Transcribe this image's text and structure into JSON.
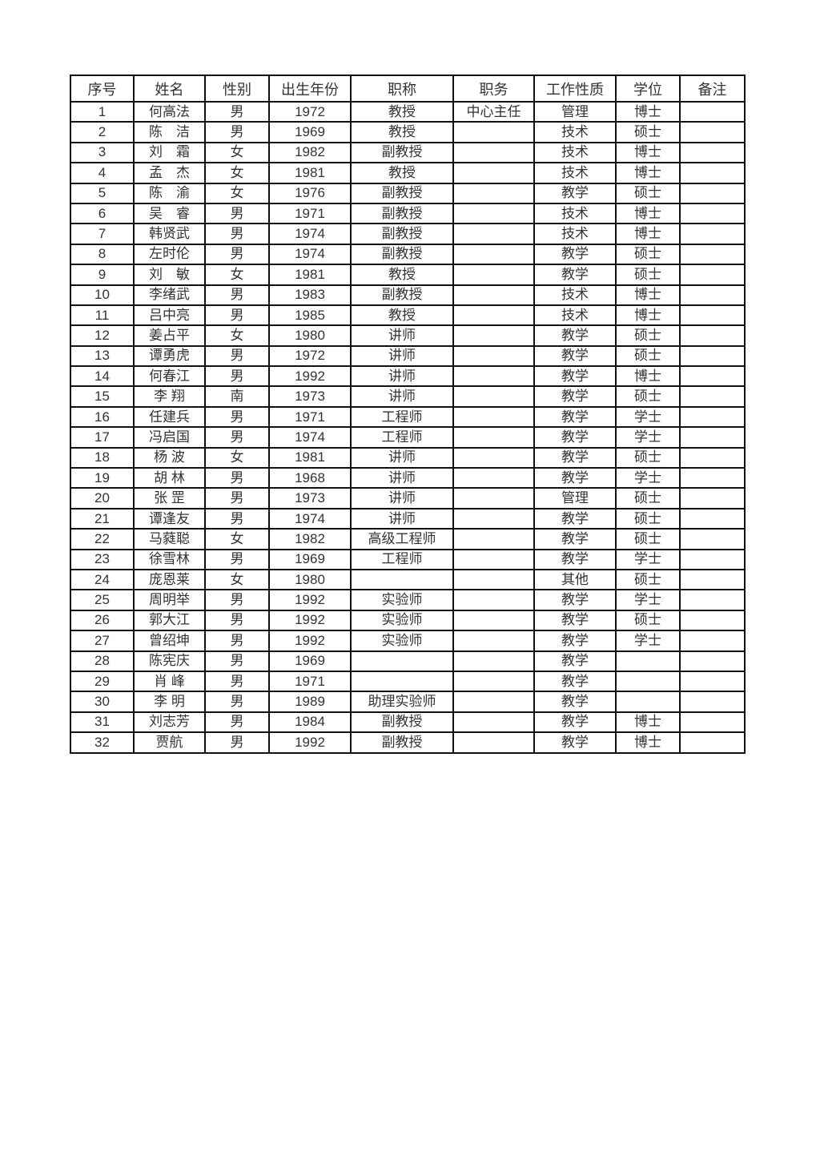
{
  "table": {
    "headers": [
      "序号",
      "姓名",
      "性别",
      "出生年份",
      "职称",
      "职务",
      "工作性质",
      "学位",
      "备注"
    ],
    "rows": [
      [
        "1",
        "何高法",
        "男",
        "1972",
        "教授",
        "中心主任",
        "管理",
        "博士",
        ""
      ],
      [
        "2",
        "陈　洁",
        "男",
        "1969",
        "教授",
        "",
        "技术",
        "硕士",
        ""
      ],
      [
        "3",
        "刘　霜",
        "女",
        "1982",
        "副教授",
        "",
        "技术",
        "博士",
        ""
      ],
      [
        "4",
        "孟　杰",
        "女",
        "1981",
        "教授",
        "",
        "技术",
        "博士",
        ""
      ],
      [
        "5",
        "陈　渝",
        "女",
        "1976",
        "副教授",
        "",
        "教学",
        "硕士",
        ""
      ],
      [
        "6",
        "吴　睿",
        "男",
        "1971",
        "副教授",
        "",
        "技术",
        "博士",
        ""
      ],
      [
        "7",
        "韩贤武",
        "男",
        "1974",
        "副教授",
        "",
        "技术",
        "博士",
        ""
      ],
      [
        "8",
        "左时伦",
        "男",
        "1974",
        "副教授",
        "",
        "教学",
        "硕士",
        ""
      ],
      [
        "9",
        "刘　敏",
        "女",
        "1981",
        "教授",
        "",
        "教学",
        "硕士",
        ""
      ],
      [
        "10",
        "李绪武",
        "男",
        "1983",
        "副教授",
        "",
        "技术",
        "博士",
        ""
      ],
      [
        "11",
        "吕中亮",
        "男",
        "1985",
        "教授",
        "",
        "技术",
        "博士",
        ""
      ],
      [
        "12",
        "姜占平",
        "女",
        "1980",
        "讲师",
        "",
        "教学",
        "硕士",
        ""
      ],
      [
        "13",
        "谭勇虎",
        "男",
        "1972",
        "讲师",
        "",
        "教学",
        "硕士",
        ""
      ],
      [
        "14",
        "何春江",
        "男",
        "1992",
        "讲师",
        "",
        "教学",
        "博士",
        ""
      ],
      [
        "15",
        "李 翔",
        "南",
        "1973",
        "讲师",
        "",
        "教学",
        "硕士",
        ""
      ],
      [
        "16",
        "任建兵",
        "男",
        "1971",
        "工程师",
        "",
        "教学",
        "学士",
        ""
      ],
      [
        "17",
        "冯启国",
        "男",
        "1974",
        "工程师",
        "",
        "教学",
        "学士",
        ""
      ],
      [
        "18",
        "杨 波",
        "女",
        "1981",
        "讲师",
        "",
        "教学",
        "硕士",
        ""
      ],
      [
        "19",
        "胡 林",
        "男",
        "1968",
        "讲师",
        "",
        "教学",
        "学士",
        ""
      ],
      [
        "20",
        "张 罡",
        "男",
        "1973",
        "讲师",
        "",
        "管理",
        "硕士",
        ""
      ],
      [
        "21",
        "谭逢友",
        "男",
        "1974",
        "讲师",
        "",
        "教学",
        "硕士",
        ""
      ],
      [
        "22",
        "马蕤聪",
        "女",
        "1982",
        "高级工程师",
        "",
        "教学",
        "硕士",
        ""
      ],
      [
        "23",
        "徐雪林",
        "男",
        "1969",
        "工程师",
        "",
        "教学",
        "学士",
        ""
      ],
      [
        "24",
        "庞恩莱",
        "女",
        "1980",
        "",
        "",
        "其他",
        "硕士",
        ""
      ],
      [
        "25",
        "周明举",
        "男",
        "1992",
        "实验师",
        "",
        "教学",
        "学士",
        ""
      ],
      [
        "26",
        "郭大江",
        "男",
        "1992",
        "实验师",
        "",
        "教学",
        "硕士",
        ""
      ],
      [
        "27",
        "曾绍坤",
        "男",
        "1992",
        "实验师",
        "",
        "教学",
        "学士",
        ""
      ],
      [
        "28",
        "陈宪庆",
        "男",
        "1969",
        "",
        "",
        "教学",
        "",
        ""
      ],
      [
        "29",
        "肖 峰",
        "男",
        "1971",
        "",
        "",
        "教学",
        "",
        ""
      ],
      [
        "30",
        "李 明",
        "男",
        "1989",
        "助理实验师",
        "",
        "教学",
        "",
        ""
      ],
      [
        "31",
        "刘志芳",
        "男",
        "1984",
        "副教授",
        "",
        "教学",
        "博士",
        ""
      ],
      [
        "32",
        "贾航",
        "男",
        "1992",
        "副教授",
        "",
        "教学",
        "博士",
        ""
      ]
    ]
  }
}
